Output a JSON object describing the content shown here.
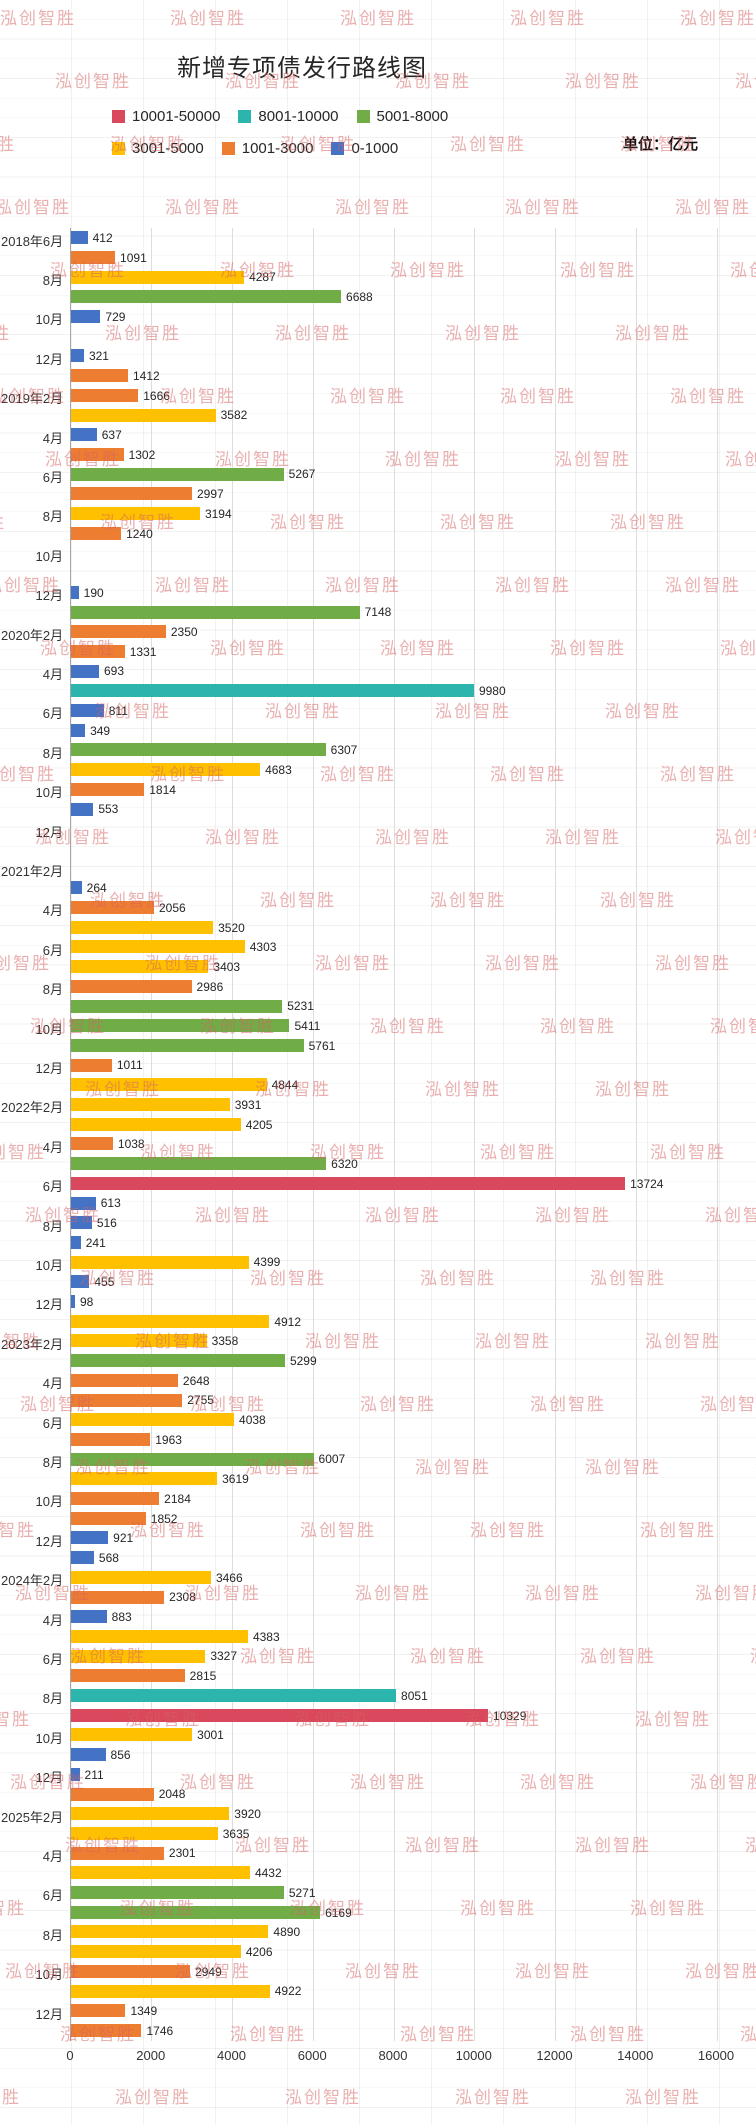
{
  "title": "新增专项债发行路线图",
  "unit_label": "单位：亿元",
  "watermark": "泓创智胜",
  "legend": [
    {
      "label": "10001-50000",
      "color": "#D9485C",
      "min": 10001,
      "max": 50000
    },
    {
      "label": "8001-10000",
      "color": "#2BB5AC",
      "min": 8001,
      "max": 10000
    },
    {
      "label": "5001-8000",
      "color": "#70AD47",
      "min": 5001,
      "max": 8000
    },
    {
      "label": "3001-5000",
      "color": "#FFC000",
      "min": 3001,
      "max": 5000
    },
    {
      "label": "1001-3000",
      "color": "#ED7D31",
      "min": 1001,
      "max": 3000
    },
    {
      "label": "0-1000",
      "color": "#4472C4",
      "min": 1,
      "max": 1000
    }
  ],
  "chart_data": {
    "type": "bar",
    "orientation": "horizontal",
    "title": "新增专项债发行路线图",
    "unit": "亿元",
    "xlim": [
      0,
      16000
    ],
    "xticks": [
      0,
      2000,
      4000,
      6000,
      8000,
      10000,
      12000,
      14000,
      16000
    ],
    "grid": "vertical",
    "legend_position": "top",
    "rows": [
      {
        "label": "2018年6月",
        "value": 412
      },
      {
        "label": "",
        "value": 1091
      },
      {
        "label": "8月",
        "value": 4287
      },
      {
        "label": "",
        "value": 6688
      },
      {
        "label": "10月",
        "value": 729
      },
      {
        "label": "",
        "value": 0
      },
      {
        "label": "12月",
        "value": 321
      },
      {
        "label": "",
        "value": 1412
      },
      {
        "label": "2019年2月",
        "value": 1666
      },
      {
        "label": "",
        "value": 3582
      },
      {
        "label": "4月",
        "value": 637
      },
      {
        "label": "",
        "value": 1302
      },
      {
        "label": "6月",
        "value": 5267
      },
      {
        "label": "",
        "value": 2997
      },
      {
        "label": "8月",
        "value": 3194
      },
      {
        "label": "",
        "value": 1240
      },
      {
        "label": "10月",
        "value": 0
      },
      {
        "label": "",
        "value": 0
      },
      {
        "label": "12月",
        "value": 190
      },
      {
        "label": "",
        "value": 7148
      },
      {
        "label": "2020年2月",
        "value": 2350
      },
      {
        "label": "",
        "value": 1331
      },
      {
        "label": "4月",
        "value": 693
      },
      {
        "label": "",
        "value": 9980
      },
      {
        "label": "6月",
        "value": 811
      },
      {
        "label": "",
        "value": 349
      },
      {
        "label": "8月",
        "value": 6307
      },
      {
        "label": "",
        "value": 4683
      },
      {
        "label": "10月",
        "value": 1814
      },
      {
        "label": "",
        "value": 553
      },
      {
        "label": "12月",
        "value": 0
      },
      {
        "label": "",
        "value": 0
      },
      {
        "label": "2021年2月",
        "value": 0
      },
      {
        "label": "",
        "value": 264
      },
      {
        "label": "4月",
        "value": 2056
      },
      {
        "label": "",
        "value": 3520
      },
      {
        "label": "6月",
        "value": 4303
      },
      {
        "label": "",
        "value": 3403
      },
      {
        "label": "8月",
        "value": 2986
      },
      {
        "label": "",
        "value": 5231
      },
      {
        "label": "10月",
        "value": 5411
      },
      {
        "label": "",
        "value": 5761
      },
      {
        "label": "12月",
        "value": 1011
      },
      {
        "label": "",
        "value": 4844
      },
      {
        "label": "2022年2月",
        "value": 3931
      },
      {
        "label": "",
        "value": 4205
      },
      {
        "label": "4月",
        "value": 1038
      },
      {
        "label": "",
        "value": 6320
      },
      {
        "label": "6月",
        "value": 13724
      },
      {
        "label": "",
        "value": 613
      },
      {
        "label": "8月",
        "value": 516
      },
      {
        "label": "",
        "value": 241
      },
      {
        "label": "10月",
        "value": 4399
      },
      {
        "label": "",
        "value": 455
      },
      {
        "label": "12月",
        "value": 98
      },
      {
        "label": "",
        "value": 4912
      },
      {
        "label": "2023年2月",
        "value": 3358
      },
      {
        "label": "",
        "value": 5299
      },
      {
        "label": "4月",
        "value": 2648
      },
      {
        "label": "",
        "value": 2755
      },
      {
        "label": "6月",
        "value": 4038
      },
      {
        "label": "",
        "value": 1963
      },
      {
        "label": "8月",
        "value": 6007
      },
      {
        "label": "",
        "value": 3619
      },
      {
        "label": "10月",
        "value": 2184
      },
      {
        "label": "",
        "value": 1852
      },
      {
        "label": "12月",
        "value": 921
      },
      {
        "label": "",
        "value": 568
      },
      {
        "label": "2024年2月",
        "value": 3466
      },
      {
        "label": "",
        "value": 2308
      },
      {
        "label": "4月",
        "value": 883
      },
      {
        "label": "",
        "value": 4383
      },
      {
        "label": "6月",
        "value": 3327
      },
      {
        "label": "",
        "value": 2815
      },
      {
        "label": "8月",
        "value": 8051
      },
      {
        "label": "",
        "value": 10329
      },
      {
        "label": "10月",
        "value": 3001
      },
      {
        "label": "",
        "value": 856
      },
      {
        "label": "12月",
        "value": 211
      },
      {
        "label": "",
        "value": 2048
      },
      {
        "label": "2025年2月",
        "value": 3920
      },
      {
        "label": "",
        "value": 3635
      },
      {
        "label": "4月",
        "value": 2301
      },
      {
        "label": "",
        "value": 4432
      },
      {
        "label": "6月",
        "value": 5271
      },
      {
        "label": "",
        "value": 6169
      },
      {
        "label": "8月",
        "value": 4890
      },
      {
        "label": "",
        "value": 4206
      },
      {
        "label": "10月",
        "value": 2949
      },
      {
        "label": "",
        "value": 4922
      },
      {
        "label": "12月",
        "value": 1349
      },
      {
        "label": "",
        "value": 1746
      }
    ]
  }
}
